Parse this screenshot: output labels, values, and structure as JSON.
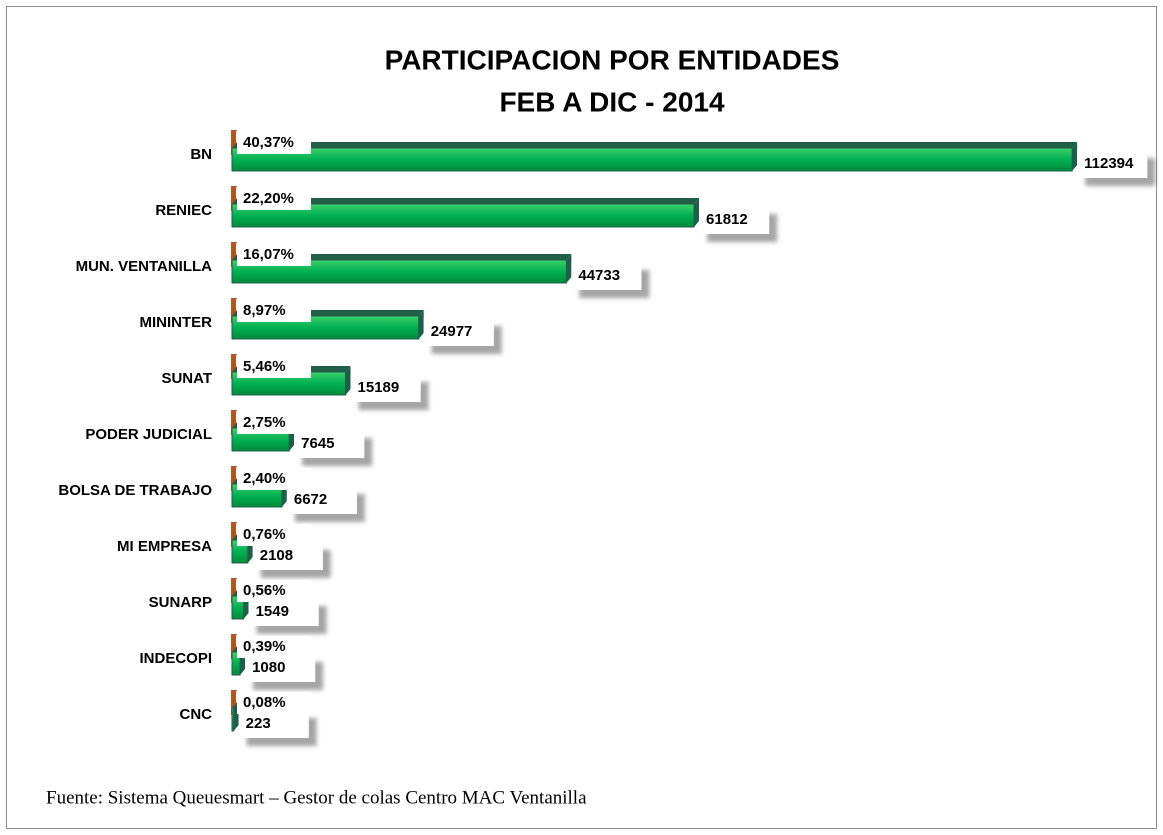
{
  "chart_data": {
    "type": "bar",
    "orientation": "horizontal",
    "title": "PARTICIPACION POR ENTIDADES",
    "subtitle": "FEB A DIC - 2014",
    "note": "Fuente: Sistema Queuesmart – Gestor de colas Centro MAC Ventanilla",
    "categories": [
      "BN",
      "RENIEC",
      "MUN. VENTANILLA",
      "MININTER",
      "SUNAT",
      "PODER JUDICIAL",
      "BOLSA DE TRABAJO",
      "MI EMPRESA",
      "SUNARP",
      "INDECOPI",
      "CNC"
    ],
    "series": [
      {
        "color": "#b5541c",
        "values": [
          40.37,
          22.2,
          16.07,
          8.97,
          5.46,
          2.75,
          2.4,
          0.76,
          0.56,
          0.39,
          0.08
        ],
        "value_labels": [
          "40,37%",
          "22,20%",
          "16,07%",
          "8,97%",
          "5,46%",
          "2,75%",
          "2,40%",
          "0,76%",
          "0,56%",
          "0,39%",
          "0,08%"
        ]
      },
      {
        "color": "#00b050",
        "values": [
          112394,
          61812,
          44733,
          24977,
          15189,
          7645,
          6672,
          2108,
          1549,
          1080,
          223
        ]
      }
    ],
    "xlim": [
      0,
      120000
    ]
  }
}
